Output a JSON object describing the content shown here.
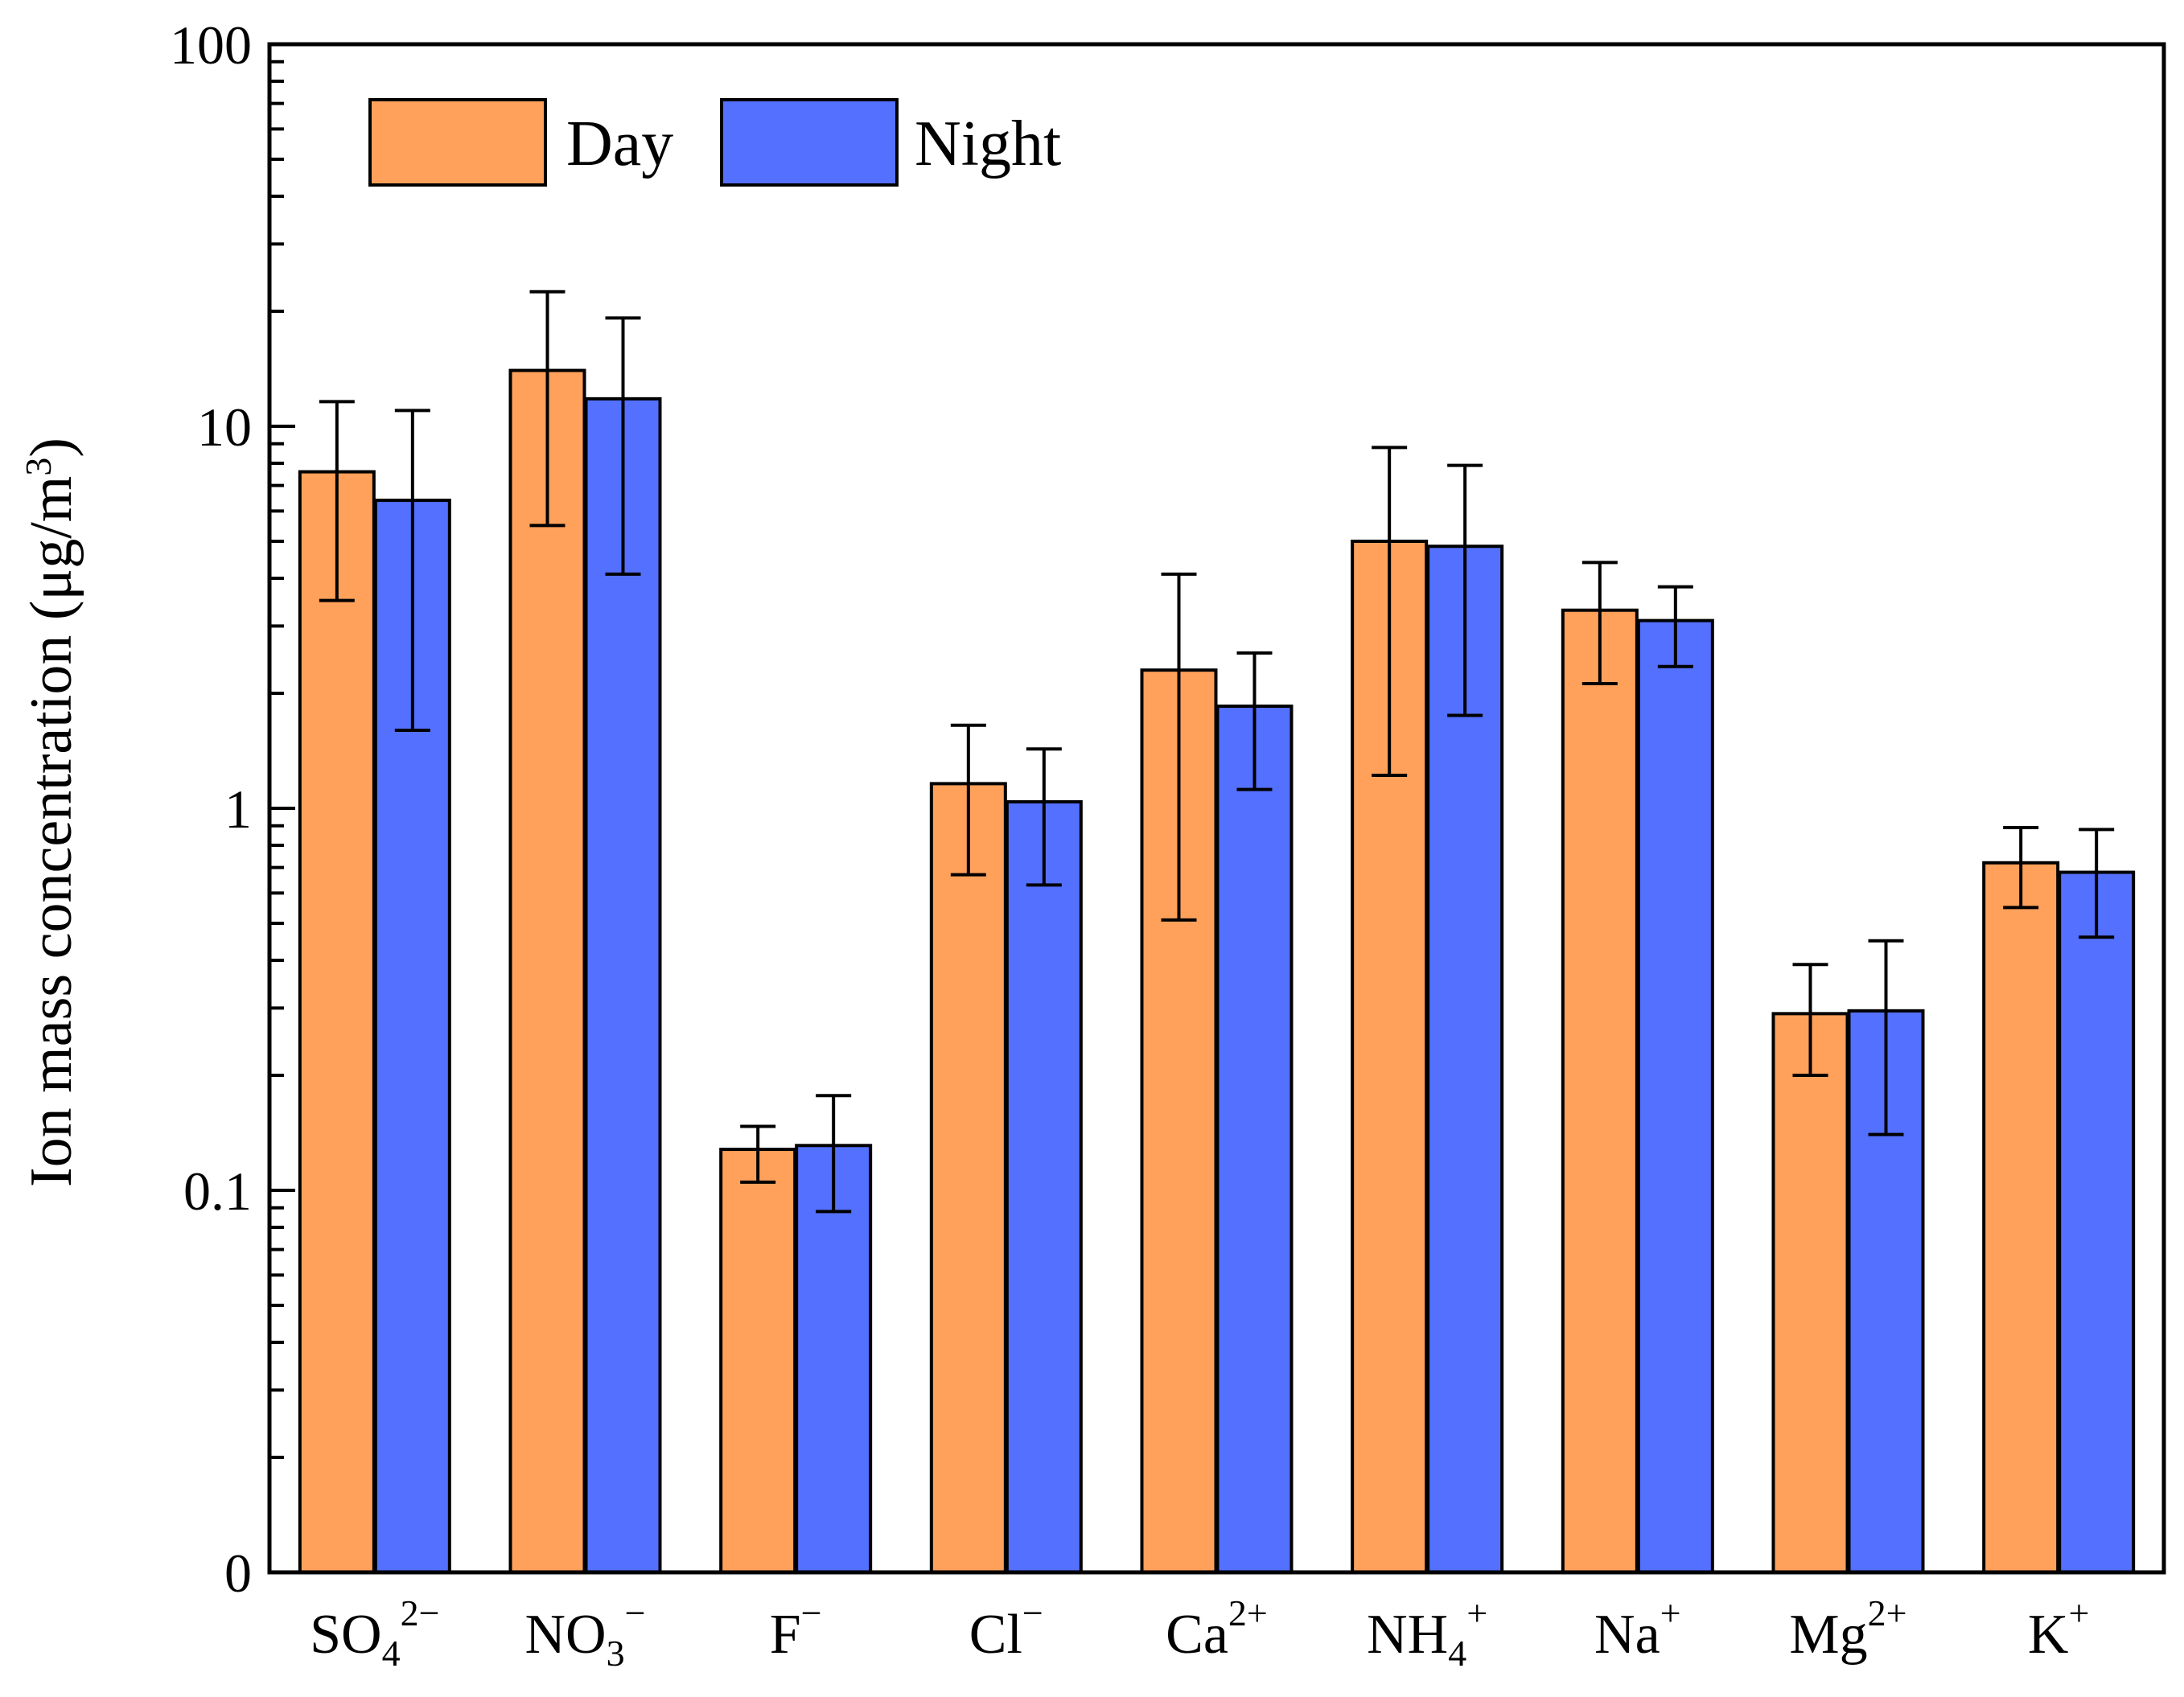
{
  "chart_data": {
    "type": "bar",
    "title": "",
    "xlabel": "",
    "ylabel": "Ion mass concentration (μg/m3)",
    "yscale": "log",
    "ylim": [
      0.01,
      100
    ],
    "yticks": [
      {
        "value": 0.01,
        "label": "0"
      },
      {
        "value": 0.1,
        "label": "0.1"
      },
      {
        "value": 1,
        "label": "1"
      },
      {
        "value": 10,
        "label": "10"
      },
      {
        "value": 100,
        "label": "100"
      }
    ],
    "legend_position": "top-left",
    "categories": [
      {
        "base": "SO",
        "sub": "4",
        "sup": "2−"
      },
      {
        "base": "NO",
        "sub": "3",
        "sup": "−"
      },
      {
        "base": "F",
        "sub": "",
        "sup": "−"
      },
      {
        "base": "Cl",
        "sub": "",
        "sup": "−"
      },
      {
        "base": "Ca",
        "sub": "",
        "sup": "2+"
      },
      {
        "base": "NH",
        "sub": "4",
        "sup": "+"
      },
      {
        "base": "Na",
        "sub": "",
        "sup": "+"
      },
      {
        "base": "Mg",
        "sub": "",
        "sup": "2+"
      },
      {
        "base": "K",
        "sub": "",
        "sup": "+"
      }
    ],
    "series": [
      {
        "name": "Day",
        "color": "#FFA15A",
        "values": [
          7.6,
          14.0,
          0.128,
          1.16,
          2.3,
          5.0,
          3.3,
          0.29,
          0.72
        ],
        "err_low": [
          3.5,
          5.5,
          0.105,
          0.67,
          0.51,
          1.22,
          2.12,
          0.2,
          0.55
        ],
        "err_high": [
          11.6,
          22.5,
          0.147,
          1.65,
          4.1,
          8.8,
          4.4,
          0.39,
          0.89
        ]
      },
      {
        "name": "Night",
        "color": "#5470FF",
        "values": [
          6.4,
          11.8,
          0.131,
          1.04,
          1.85,
          4.85,
          3.1,
          0.295,
          0.68
        ],
        "err_low": [
          1.6,
          4.1,
          0.088,
          0.63,
          1.12,
          1.75,
          2.35,
          0.14,
          0.46
        ],
        "err_high": [
          11.0,
          19.2,
          0.177,
          1.43,
          2.55,
          7.9,
          3.8,
          0.45,
          0.88
        ]
      }
    ]
  },
  "axis": {
    "ylabel_main": "Ion mass concentration (μg/m",
    "ylabel_sup": "3",
    "ylabel_close": ")"
  }
}
